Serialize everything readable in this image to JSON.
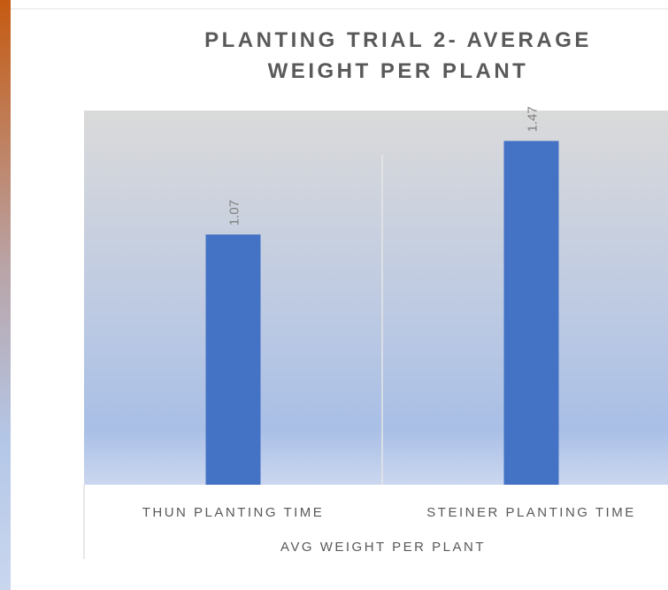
{
  "chart_data": {
    "type": "bar",
    "title": "PLANTING TRIAL 2- AVERAGE WEIGHT PER PLANT",
    "categories": [
      "THUN PLANTING TIME",
      "STEINER PLANTING TIME"
    ],
    "values": [
      1.07,
      1.47
    ],
    "color": "#4472c4",
    "xlabel": "AVG WEIGHT PER PLANT",
    "ylim": [
      0,
      1.6
    ]
  }
}
